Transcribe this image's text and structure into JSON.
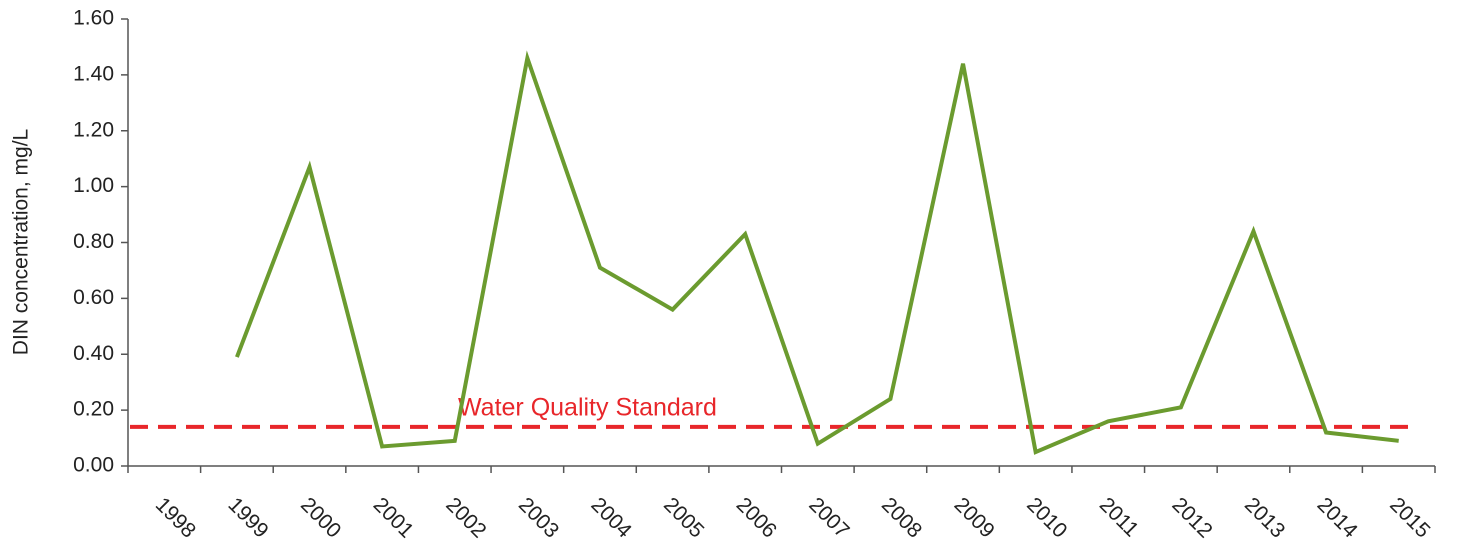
{
  "chart_data": {
    "type": "line",
    "y_label": "DIN concentration, mg/L",
    "categories": [
      "1998",
      "1999",
      "2000",
      "2001",
      "2002",
      "2003",
      "2004",
      "2005",
      "2006",
      "2007",
      "2008",
      "2009",
      "2010",
      "2011",
      "2012",
      "2013",
      "2014",
      "2015"
    ],
    "series": [
      {
        "name": "DIN",
        "color": "#6b9b2f",
        "values": [
          null,
          0.39,
          1.07,
          0.07,
          0.09,
          1.46,
          0.71,
          0.56,
          0.83,
          0.08,
          0.24,
          1.44,
          0.05,
          0.16,
          0.21,
          0.84,
          0.12,
          0.09
        ]
      }
    ],
    "reference_line": {
      "value": 0.14,
      "label": "Water Quality Standard",
      "color": "#e8262a"
    },
    "ylim": [
      0,
      1.6
    ],
    "yticks": [
      {
        "value": 0,
        "label": "0.00"
      },
      {
        "value": 0.2,
        "label": "0.20"
      },
      {
        "value": 0.4,
        "label": "0.40"
      },
      {
        "value": 0.6,
        "label": "0.60"
      },
      {
        "value": 0.8,
        "label": "0.80"
      },
      {
        "value": 1.0,
        "label": "1.00"
      },
      {
        "value": 1.2,
        "label": "1.20"
      },
      {
        "value": 1.4,
        "label": "1.40"
      },
      {
        "value": 1.6,
        "label": "1.60"
      }
    ],
    "grid": false
  }
}
